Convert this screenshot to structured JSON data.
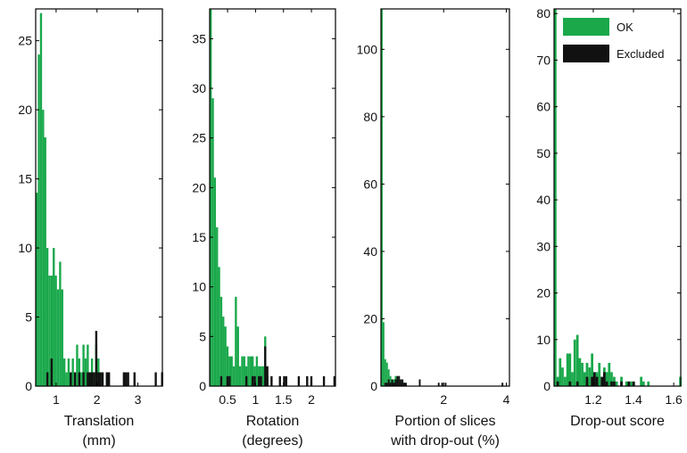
{
  "colors": {
    "ok": "#1aa84b",
    "excluded": "#111111",
    "axis": "#000000"
  },
  "legend": {
    "position": "top-right of panel 4",
    "items": [
      {
        "label": "OK",
        "color": "#1aa84b"
      },
      {
        "label": "Excluded",
        "color": "#111111"
      }
    ]
  },
  "chart_data": [
    {
      "type": "bar",
      "histogram": true,
      "xlabel": [
        "Translation",
        "(mm)"
      ],
      "ylabel": "",
      "xlim": [
        0.5,
        3.6
      ],
      "ylim": [
        0,
        27.3
      ],
      "xticks": [
        {
          "v": 1,
          "label": "1"
        },
        {
          "v": 2,
          "label": "2"
        },
        {
          "v": 3,
          "label": "3"
        }
      ],
      "yticks": [
        {
          "v": 0,
          "label": "0"
        },
        {
          "v": 5,
          "label": "5"
        },
        {
          "v": 10,
          "label": "10"
        },
        {
          "v": 15,
          "label": "15"
        },
        {
          "v": 20,
          "label": "20"
        },
        {
          "v": 25,
          "label": "25"
        }
      ],
      "bin_width": 0.052,
      "series": [
        {
          "name": "OK",
          "bins": [
            [
              0.5,
              14
            ],
            [
              0.552,
              24
            ],
            [
              0.604,
              27
            ],
            [
              0.656,
              20
            ],
            [
              0.708,
              18
            ],
            [
              0.76,
              10
            ],
            [
              0.812,
              8
            ],
            [
              0.864,
              8
            ],
            [
              0.916,
              10
            ],
            [
              0.968,
              8
            ],
            [
              1.02,
              7
            ],
            [
              1.072,
              9
            ],
            [
              1.124,
              7
            ],
            [
              1.176,
              2
            ],
            [
              1.228,
              1
            ],
            [
              1.28,
              2
            ],
            [
              1.332,
              1
            ],
            [
              1.384,
              2
            ],
            [
              1.436,
              1
            ],
            [
              1.488,
              3
            ],
            [
              1.54,
              2
            ],
            [
              1.592,
              1
            ],
            [
              1.644,
              3
            ],
            [
              1.696,
              2
            ],
            [
              1.748,
              3
            ],
            [
              1.8,
              1
            ],
            [
              1.852,
              2
            ],
            [
              1.904,
              1
            ],
            [
              1.956,
              3
            ],
            [
              2.008,
              2
            ],
            [
              2.06,
              1
            ],
            [
              2.216,
              1
            ]
          ]
        },
        {
          "name": "Excluded",
          "bins": [
            [
              0.76,
              1
            ],
            [
              0.864,
              2
            ],
            [
              1.332,
              1
            ],
            [
              1.436,
              1
            ],
            [
              1.54,
              1
            ],
            [
              1.644,
              1
            ],
            [
              1.748,
              1
            ],
            [
              1.8,
              1
            ],
            [
              1.852,
              1
            ],
            [
              1.904,
              1
            ],
            [
              1.956,
              4
            ],
            [
              2.008,
              1
            ],
            [
              2.06,
              1
            ],
            [
              2.112,
              1
            ],
            [
              2.216,
              1
            ],
            [
              2.268,
              1
            ],
            [
              2.632,
              1
            ],
            [
              2.684,
              1
            ],
            [
              2.736,
              1
            ],
            [
              2.892,
              1
            ],
            [
              3.412,
              1
            ],
            [
              3.568,
              1
            ]
          ]
        }
      ]
    },
    {
      "type": "bar",
      "histogram": true,
      "xlabel": [
        "Rotation",
        "(degrees)"
      ],
      "ylabel": "",
      "xlim": [
        0.18,
        2.43
      ],
      "ylim": [
        0,
        38
      ],
      "xticks": [
        {
          "v": 0.5,
          "label": "0.5"
        },
        {
          "v": 1,
          "label": "1"
        },
        {
          "v": 1.5,
          "label": "1.5"
        },
        {
          "v": 2,
          "label": "2"
        }
      ],
      "yticks": [
        {
          "v": 0,
          "label": "0"
        },
        {
          "v": 5,
          "label": "5"
        },
        {
          "v": 10,
          "label": "10"
        },
        {
          "v": 15,
          "label": "15"
        },
        {
          "v": 20,
          "label": "20"
        },
        {
          "v": 25,
          "label": "25"
        },
        {
          "v": 30,
          "label": "30"
        },
        {
          "v": 35,
          "label": "35"
        }
      ],
      "bin_width": 0.0375,
      "series": [
        {
          "name": "OK",
          "bins": [
            [
              0.18,
              38
            ],
            [
              0.218,
              29
            ],
            [
              0.255,
              21
            ],
            [
              0.293,
              16
            ],
            [
              0.33,
              12
            ],
            [
              0.368,
              9
            ],
            [
              0.405,
              7
            ],
            [
              0.443,
              6
            ],
            [
              0.48,
              4
            ],
            [
              0.518,
              3
            ],
            [
              0.555,
              3
            ],
            [
              0.593,
              2
            ],
            [
              0.63,
              9
            ],
            [
              0.668,
              6
            ],
            [
              0.705,
              2
            ],
            [
              0.743,
              3
            ],
            [
              0.78,
              3
            ],
            [
              0.818,
              2
            ],
            [
              0.855,
              3
            ],
            [
              0.893,
              3
            ],
            [
              0.93,
              3
            ],
            [
              0.968,
              2
            ],
            [
              1.005,
              3
            ],
            [
              1.043,
              2
            ],
            [
              1.08,
              2
            ],
            [
              1.118,
              2
            ],
            [
              1.155,
              5
            ],
            [
              1.193,
              1
            ]
          ]
        },
        {
          "name": "Excluded",
          "bins": [
            [
              0.368,
              1
            ],
            [
              0.48,
              1
            ],
            [
              0.518,
              1
            ],
            [
              0.818,
              1
            ],
            [
              0.93,
              1
            ],
            [
              0.968,
              1
            ],
            [
              1.043,
              1
            ],
            [
              1.08,
              1
            ],
            [
              1.155,
              4
            ],
            [
              1.193,
              2
            ],
            [
              1.268,
              1
            ],
            [
              1.418,
              1
            ],
            [
              1.493,
              1
            ],
            [
              1.53,
              1
            ],
            [
              1.755,
              1
            ],
            [
              1.905,
              1
            ],
            [
              1.98,
              1
            ],
            [
              2.205,
              1
            ],
            [
              2.393,
              1
            ]
          ]
        }
      ]
    },
    {
      "type": "bar",
      "histogram": true,
      "xlabel": [
        "Portion of slices",
        "with drop-out (%)"
      ],
      "ylabel": "",
      "xlim": [
        0,
        4.1
      ],
      "ylim": [
        0,
        112
      ],
      "xticks": [
        {
          "v": 2,
          "label": "2"
        },
        {
          "v": 4,
          "label": "4"
        }
      ],
      "yticks": [
        {
          "v": 0,
          "label": "0"
        },
        {
          "v": 20,
          "label": "20"
        },
        {
          "v": 40,
          "label": "40"
        },
        {
          "v": 60,
          "label": "60"
        },
        {
          "v": 80,
          "label": "80"
        },
        {
          "v": 100,
          "label": "100"
        }
      ],
      "bin_width": 0.055,
      "series": [
        {
          "name": "OK",
          "bins": [
            [
              0,
              112
            ],
            [
              0.055,
              19
            ],
            [
              0.11,
              8
            ],
            [
              0.165,
              7
            ],
            [
              0.22,
              5
            ],
            [
              0.275,
              3
            ],
            [
              0.33,
              2
            ],
            [
              0.385,
              2
            ],
            [
              0.44,
              3
            ],
            [
              0.495,
              2
            ],
            [
              0.55,
              2
            ],
            [
              0.605,
              1
            ],
            [
              0.66,
              1
            ],
            [
              0.715,
              1
            ]
          ]
        },
        {
          "name": "Excluded",
          "bins": [
            [
              0.11,
              1
            ],
            [
              0.165,
              1
            ],
            [
              0.22,
              2
            ],
            [
              0.275,
              1
            ],
            [
              0.33,
              2
            ],
            [
              0.385,
              1
            ],
            [
              0.44,
              2
            ],
            [
              0.495,
              3
            ],
            [
              0.55,
              3
            ],
            [
              0.605,
              2
            ],
            [
              0.66,
              2
            ],
            [
              0.715,
              1
            ],
            [
              0.77,
              1
            ],
            [
              1.21,
              2
            ],
            [
              1.815,
              1
            ],
            [
              1.925,
              1
            ],
            [
              2.035,
              1
            ],
            [
              3.85,
              1
            ]
          ]
        }
      ]
    },
    {
      "type": "bar",
      "histogram": true,
      "xlabel": [
        "Drop-out score"
      ],
      "ylabel": "",
      "xlim": [
        1.005,
        1.635
      ],
      "ylim": [
        0,
        81
      ],
      "xticks": [
        {
          "v": 1.2,
          "label": "1.2"
        },
        {
          "v": 1.4,
          "label": "1.4"
        },
        {
          "v": 1.6,
          "label": "1.6"
        }
      ],
      "yticks": [
        {
          "v": 0,
          "label": "0"
        },
        {
          "v": 10,
          "label": "10"
        },
        {
          "v": 20,
          "label": "20"
        },
        {
          "v": 30,
          "label": "30"
        },
        {
          "v": 40,
          "label": "40"
        },
        {
          "v": 50,
          "label": "50"
        },
        {
          "v": 60,
          "label": "60"
        },
        {
          "v": 70,
          "label": "70"
        },
        {
          "v": 80,
          "label": "80"
        }
      ],
      "bin_width": 0.0122,
      "series": [
        {
          "name": "OK",
          "bins": [
            [
              1.005,
              81
            ],
            [
              1.017,
              2
            ],
            [
              1.029,
              6
            ],
            [
              1.041,
              4
            ],
            [
              1.054,
              2
            ],
            [
              1.066,
              7
            ],
            [
              1.078,
              7
            ],
            [
              1.09,
              3
            ],
            [
              1.102,
              10
            ],
            [
              1.115,
              11
            ],
            [
              1.127,
              6
            ],
            [
              1.139,
              5
            ],
            [
              1.151,
              3
            ],
            [
              1.163,
              5
            ],
            [
              1.176,
              4
            ],
            [
              1.188,
              7
            ],
            [
              1.2,
              2
            ],
            [
              1.212,
              3
            ],
            [
              1.224,
              5
            ],
            [
              1.237,
              2
            ],
            [
              1.249,
              4
            ],
            [
              1.261,
              3
            ],
            [
              1.273,
              5
            ],
            [
              1.285,
              3
            ],
            [
              1.298,
              2
            ],
            [
              1.31,
              1
            ],
            [
              1.334,
              2
            ],
            [
              1.359,
              1
            ],
            [
              1.383,
              1
            ],
            [
              1.432,
              2
            ],
            [
              1.444,
              1
            ],
            [
              1.468,
              1
            ],
            [
              1.627,
              2
            ]
          ]
        },
        {
          "name": "Excluded",
          "bins": [
            [
              1.017,
              1
            ],
            [
              1.078,
              1
            ],
            [
              1.115,
              1
            ],
            [
              1.163,
              2
            ],
            [
              1.188,
              2
            ],
            [
              1.2,
              3
            ],
            [
              1.212,
              2
            ],
            [
              1.237,
              2
            ],
            [
              1.249,
              3
            ],
            [
              1.261,
              1
            ],
            [
              1.285,
              1
            ],
            [
              1.298,
              1
            ],
            [
              1.334,
              1
            ],
            [
              1.371,
              1
            ],
            [
              1.395,
              1
            ]
          ]
        }
      ]
    }
  ]
}
